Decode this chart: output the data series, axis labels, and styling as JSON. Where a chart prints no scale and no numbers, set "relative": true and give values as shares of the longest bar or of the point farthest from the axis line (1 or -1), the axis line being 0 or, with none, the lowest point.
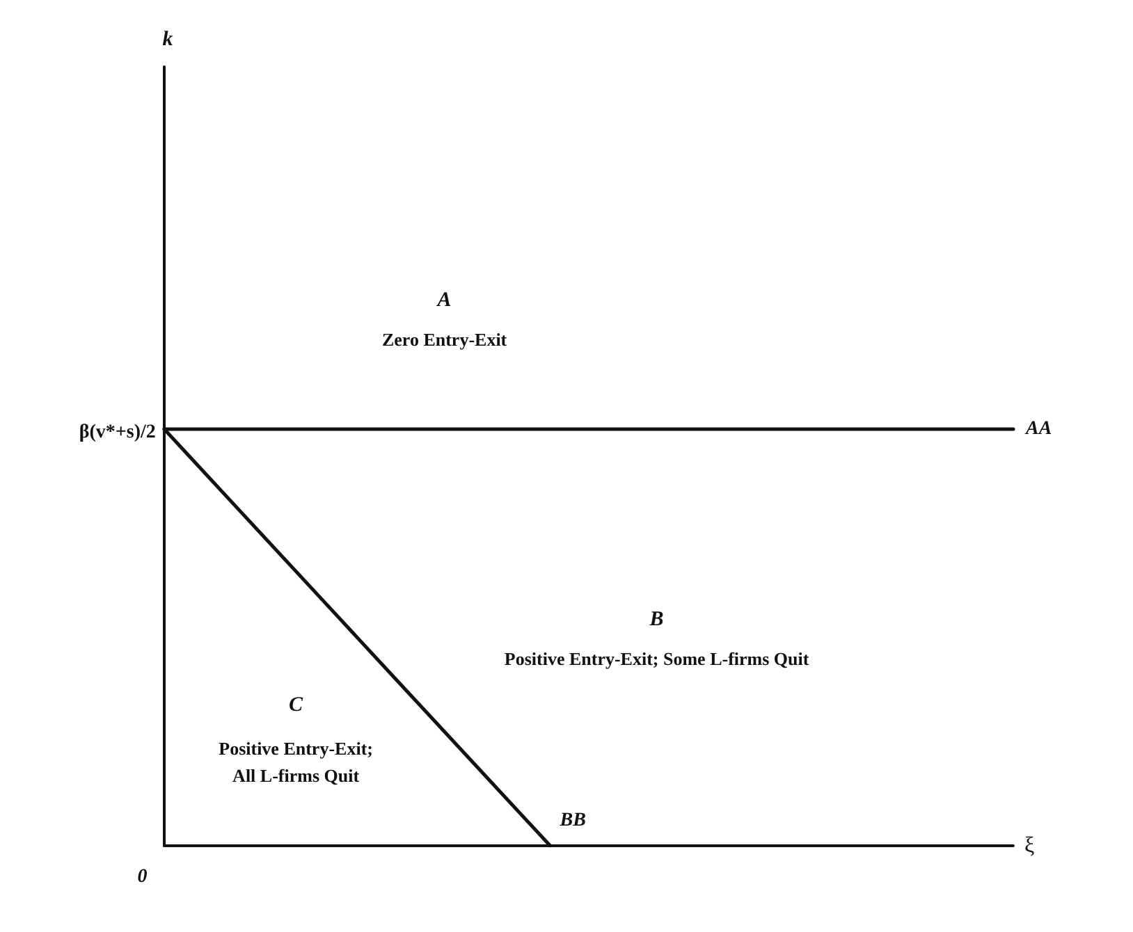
{
  "chart_data": {
    "type": "line",
    "relative": true,
    "xlabel": "ξ",
    "categories": [
      null,
      null,
      null,
      null,
      null,
      null,
      null,
      null,
      null,
      null,
      null,
      null
    ],
    "series": [
      {
        "name": "AA",
        "color": "#111111",
        "values": [
          1,
          1,
          1,
          1,
          1,
          1,
          1,
          1,
          1,
          1,
          1,
          1
        ]
      },
      {
        "name": "BB",
        "color": "#111111",
        "values": [
          1,
          0.8,
          0.6,
          0.4,
          0.2,
          0,
          null,
          null,
          null,
          null,
          null,
          null
        ]
      }
    ],
    "annotations": [
      "0",
      "β(v*+s)/2",
      "A",
      "Zero Entry-Exit",
      "B",
      "Positive Entry-Exit; Some L-firms Quit",
      "C",
      "Positive Entry-Exit;",
      "All L-firms Quit",
      "k"
    ],
    "legend": false,
    "grid": false,
    "marker": "none",
    "line_style": "solid"
  }
}
